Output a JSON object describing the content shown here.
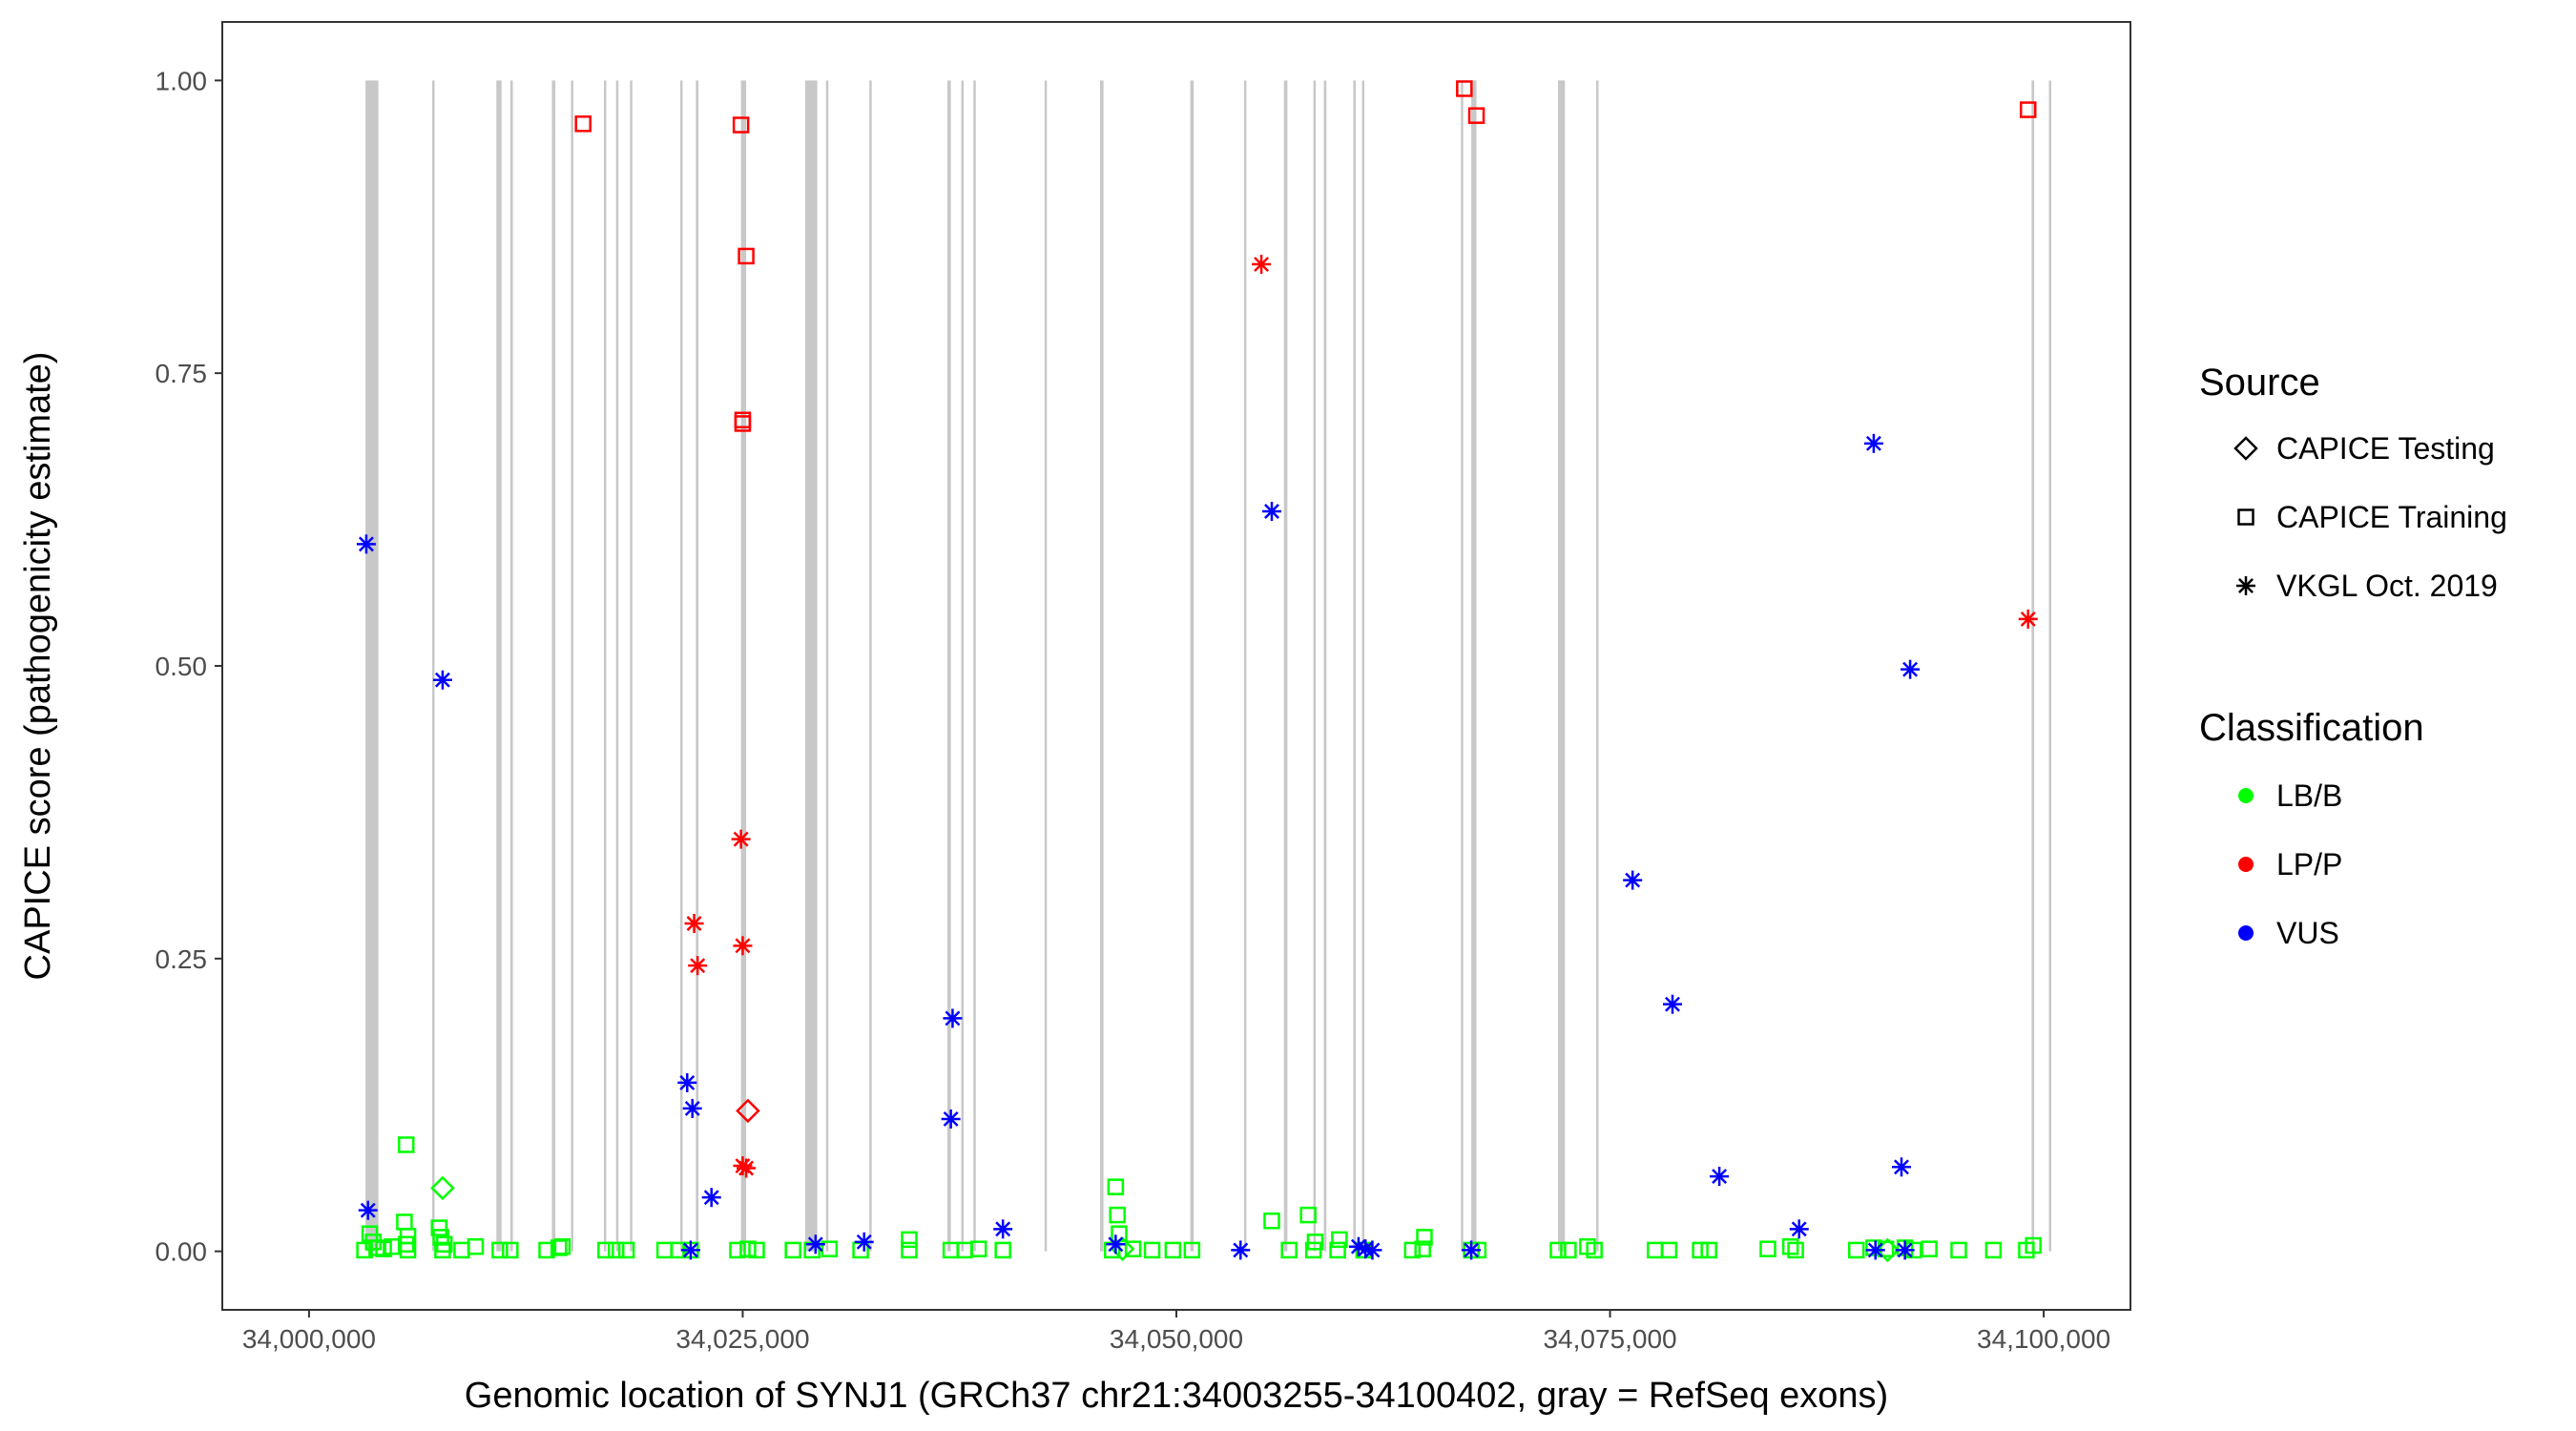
{
  "chart_data": {
    "type": "scatter",
    "xlabel": "Genomic location of SYNJ1 (GRCh37 chr21:34003255-34100402, gray = RefSeq exons)",
    "ylabel": "CAPICE score (pathogenicity estimate)",
    "xlim": [
      33995000,
      34105000
    ],
    "ylim": [
      -0.05,
      1.05
    ],
    "x_ticks": [
      34000000,
      34025000,
      34050000,
      34075000,
      34100000
    ],
    "x_tick_labels": [
      "34,000,000",
      "34,025,000",
      "34,050,000",
      "34,075,000",
      "34,100,000"
    ],
    "y_ticks": [
      0,
      0.25,
      0.5,
      0.75,
      1.0
    ],
    "y_tick_labels": [
      "0.00",
      "0.25",
      "0.50",
      "0.75",
      "1.00"
    ],
    "grid": false,
    "exon_color": "#c8c8c8",
    "exon_regions": [
      [
        34003255,
        34004000
      ],
      [
        34007100,
        34007200
      ],
      [
        34010800,
        34011100
      ],
      [
        34011600,
        34011750
      ],
      [
        34014000,
        34014200
      ],
      [
        34015100,
        34015200
      ],
      [
        34017000,
        34017100
      ],
      [
        34017700,
        34017800
      ],
      [
        34018500,
        34018600
      ],
      [
        34021400,
        34021500
      ],
      [
        34022300,
        34022450
      ],
      [
        34024900,
        34025200
      ],
      [
        34028600,
        34029300
      ],
      [
        34029800,
        34029900
      ],
      [
        34032300,
        34032400
      ],
      [
        34036800,
        34037000
      ],
      [
        34037600,
        34037700
      ],
      [
        34038300,
        34038400
      ],
      [
        34042400,
        34042500
      ],
      [
        34045600,
        34045800
      ],
      [
        34050800,
        34051000
      ],
      [
        34053900,
        34054000
      ],
      [
        34056200,
        34056400
      ],
      [
        34057900,
        34058000
      ],
      [
        34058500,
        34058650
      ],
      [
        34060200,
        34060300
      ],
      [
        34060700,
        34060800
      ],
      [
        34066400,
        34066500
      ],
      [
        34067000,
        34067300
      ],
      [
        34072000,
        34072400
      ],
      [
        34074200,
        34074300
      ],
      [
        34099300,
        34099450
      ],
      [
        34100300,
        34100402
      ]
    ],
    "legend": {
      "source_title": "Source",
      "source_items": [
        {
          "label": "CAPICE Testing",
          "shape": "diamond"
        },
        {
          "label": "CAPICE Training",
          "shape": "square"
        },
        {
          "label": "VKGL Oct. 2019",
          "shape": "asterisk"
        }
      ],
      "classification_title": "Classification",
      "classification_items": [
        {
          "label": "LB/B",
          "color": "#00ff00"
        },
        {
          "label": "LP/P",
          "color": "#ff0000"
        },
        {
          "label": "VUS",
          "color": "#0000ff"
        }
      ]
    },
    "series": [
      {
        "name": "CAPICE Training LP/P",
        "source": "CAPICE Training",
        "class": "LP/P",
        "points": [
          [
            34015800,
            0.963
          ],
          [
            34024900,
            0.962
          ],
          [
            34025200,
            0.85
          ],
          [
            34025000,
            0.71
          ],
          [
            34025000,
            0.707
          ],
          [
            34066600,
            0.993
          ],
          [
            34067300,
            0.97
          ],
          [
            34099100,
            0.975
          ]
        ]
      },
      {
        "name": "CAPICE Testing LP/P",
        "source": "CAPICE Testing",
        "class": "LP/P",
        "points": [
          [
            34025300,
            0.12
          ]
        ]
      },
      {
        "name": "VKGL LP/P",
        "source": "VKGL Oct. 2019",
        "class": "LP/P",
        "points": [
          [
            34024900,
            0.352
          ],
          [
            34022200,
            0.28
          ],
          [
            34022400,
            0.244
          ],
          [
            34025000,
            0.261
          ],
          [
            34025000,
            0.073
          ],
          [
            34025200,
            0.071
          ],
          [
            34054900,
            0.843
          ],
          [
            34099100,
            0.54
          ]
        ]
      },
      {
        "name": "VKGL VUS",
        "source": "VKGL Oct. 2019",
        "class": "VUS",
        "points": [
          [
            34003300,
            0.604
          ],
          [
            34007700,
            0.488
          ],
          [
            34003400,
            0.035
          ],
          [
            34021800,
            0.144
          ],
          [
            34022100,
            0.122
          ],
          [
            34023200,
            0.046
          ],
          [
            34022000,
            0.001
          ],
          [
            34029200,
            0.006
          ],
          [
            34032000,
            0.008
          ],
          [
            34037100,
            0.199
          ],
          [
            34037000,
            0.113
          ],
          [
            34040000,
            0.019
          ],
          [
            34046500,
            0.006
          ],
          [
            34053700,
            0.001
          ],
          [
            34055500,
            0.632
          ],
          [
            34060500,
            0.004
          ],
          [
            34060900,
            0.002
          ],
          [
            34061300,
            0.001
          ],
          [
            34067000,
            0.001
          ],
          [
            34076300,
            0.317
          ],
          [
            34078600,
            0.211
          ],
          [
            34081300,
            0.064
          ],
          [
            34085900,
            0.019
          ],
          [
            34090200,
            0.69
          ],
          [
            34090300,
            0.001
          ],
          [
            34092300,
            0.497
          ],
          [
            34091800,
            0.072
          ],
          [
            34092000,
            0.001
          ]
        ]
      },
      {
        "name": "CAPICE Testing LB/B",
        "source": "CAPICE Testing",
        "class": "LB/B",
        "points": [
          [
            34007700,
            0.054
          ],
          [
            34046900,
            0.002
          ],
          [
            34091000,
            0.001
          ]
        ]
      },
      {
        "name": "CAPICE Training LB/B",
        "source": "CAPICE Training",
        "class": "LB/B",
        "points": [
          [
            34005600,
            0.091
          ],
          [
            34005500,
            0.025
          ],
          [
            34005700,
            0.013
          ],
          [
            34005600,
            0.006
          ],
          [
            34005700,
            0.001
          ],
          [
            34003200,
            0.001
          ],
          [
            34003500,
            0.015
          ],
          [
            34003700,
            0.008
          ],
          [
            34003900,
            0.003
          ],
          [
            34004300,
            0.002
          ],
          [
            34004800,
            0.004
          ],
          [
            34007500,
            0.02
          ],
          [
            34007600,
            0.012
          ],
          [
            34007800,
            0.006
          ],
          [
            34007700,
            0.001
          ],
          [
            34008800,
            0.001
          ],
          [
            34009600,
            0.004
          ],
          [
            34011000,
            0.001
          ],
          [
            34011600,
            0.001
          ],
          [
            34013700,
            0.001
          ],
          [
            34014400,
            0.003
          ],
          [
            34014600,
            0.004
          ],
          [
            34017100,
            0.001
          ],
          [
            34017700,
            0.001
          ],
          [
            34018300,
            0.001
          ],
          [
            34020500,
            0.001
          ],
          [
            34021300,
            0.001
          ],
          [
            34022000,
            0.001
          ],
          [
            34024700,
            0.001
          ],
          [
            34025300,
            0.002
          ],
          [
            34025800,
            0.001
          ],
          [
            34027900,
            0.001
          ],
          [
            34029000,
            0.001
          ],
          [
            34030000,
            0.002
          ],
          [
            34031800,
            0.001
          ],
          [
            34034600,
            0.01
          ],
          [
            34034600,
            0.001
          ],
          [
            34037000,
            0.001
          ],
          [
            34037800,
            0.001
          ],
          [
            34038600,
            0.002
          ],
          [
            34040000,
            0.001
          ],
          [
            34046500,
            0.055
          ],
          [
            34046600,
            0.031
          ],
          [
            34046700,
            0.015
          ],
          [
            34046300,
            0.001
          ],
          [
            34047500,
            0.002
          ],
          [
            34048600,
            0.001
          ],
          [
            34049800,
            0.001
          ],
          [
            34050900,
            0.001
          ],
          [
            34055500,
            0.026
          ],
          [
            34056500,
            0.001
          ],
          [
            34057600,
            0.031
          ],
          [
            34058000,
            0.008
          ],
          [
            34057900,
            0.001
          ],
          [
            34059400,
            0.01
          ],
          [
            34059300,
            0.001
          ],
          [
            34060800,
            0.001
          ],
          [
            34063600,
            0.001
          ],
          [
            34064300,
            0.012
          ],
          [
            34064200,
            0.002
          ],
          [
            34067000,
            0.001
          ],
          [
            34067400,
            0.001
          ],
          [
            34072000,
            0.001
          ],
          [
            34072600,
            0.001
          ],
          [
            34073700,
            0.004
          ],
          [
            34074100,
            0.001
          ],
          [
            34077600,
            0.001
          ],
          [
            34078400,
            0.001
          ],
          [
            34080200,
            0.001
          ],
          [
            34080700,
            0.001
          ],
          [
            34084100,
            0.002
          ],
          [
            34085400,
            0.004
          ],
          [
            34085700,
            0.001
          ],
          [
            34089200,
            0.001
          ],
          [
            34090200,
            0.003
          ],
          [
            34090900,
            0.002
          ],
          [
            34092000,
            0.003
          ],
          [
            34092500,
            0.001
          ],
          [
            34093400,
            0.002
          ],
          [
            34095100,
            0.001
          ],
          [
            34097100,
            0.001
          ],
          [
            34099000,
            0.001
          ],
          [
            34099400,
            0.005
          ]
        ]
      }
    ]
  }
}
